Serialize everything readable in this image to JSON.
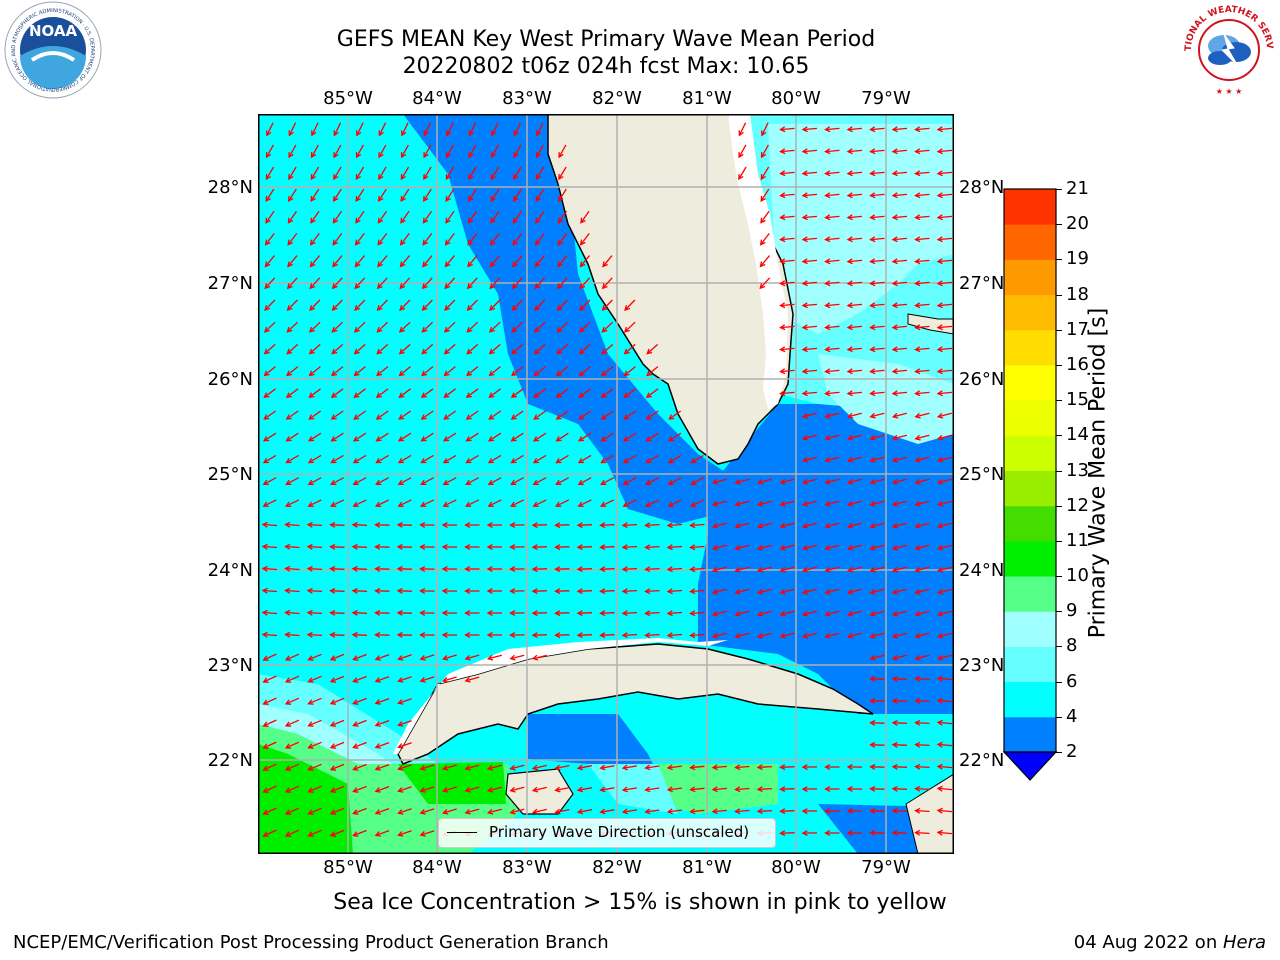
{
  "title": {
    "line1": "GEFS MEAN Key West Primary Wave Mean Period",
    "line2": "20220802 t06z 024h fcst   Max: 10.65"
  },
  "map": {
    "lon_labels": [
      "85°W",
      "84°W",
      "83°W",
      "82°W",
      "81°W",
      "80°W",
      "79°W"
    ],
    "lat_labels": [
      "28°N",
      "27°N",
      "26°N",
      "25°N",
      "24°N",
      "23°N",
      "22°N"
    ],
    "lon_range": [
      -86.0,
      -78.3
    ],
    "lat_range": [
      21.05,
      28.75
    ],
    "legend_text": "Primary Wave Direction (unscaled)",
    "colors": {
      "land": "#eeecdc",
      "grid": "#b0b0b0",
      "arrow": "#ff0000",
      "period_2_4": "#0080ff",
      "period_4_6": "#00ffff",
      "period_6_8": "#66ffff",
      "period_8_9": "#a0ffff",
      "period_9_10": "#55ff88",
      "period_10_11": "#00ee00"
    }
  },
  "colorbar": {
    "label": "Primary Wave Mean Period [s]",
    "ticks": [
      "2",
      "4",
      "6",
      "8",
      "9",
      "10",
      "11",
      "12",
      "13",
      "14",
      "15",
      "16",
      "17",
      "18",
      "19",
      "20",
      "21"
    ],
    "colors": [
      "#0080ff",
      "#00ffff",
      "#66ffff",
      "#a0ffff",
      "#55ff88",
      "#00ee00",
      "#44dd00",
      "#99ee00",
      "#ccff00",
      "#eeff00",
      "#ffff00",
      "#ffdd00",
      "#ffbb00",
      "#ff9900",
      "#ff6600",
      "#ff3300"
    ],
    "extend_color": "#0000ff"
  },
  "notes": {
    "sea_ice": "Sea Ice Concentration > 15% is shown in pink to yellow",
    "footer_left": "NCEP/EMC/Verification Post Processing Product Generation Branch",
    "footer_date": "04 Aug 2022 on ",
    "footer_machine": "Hera"
  },
  "logos": {
    "noaa_text": "NOAA",
    "noaa_ring": "NATIONAL OCEANIC AND ATMOSPHERIC ADMINISTRATION · U.S. DEPARTMENT OF COMMERCE",
    "nws_ring": "NATIONAL WEATHER SERVICE"
  }
}
